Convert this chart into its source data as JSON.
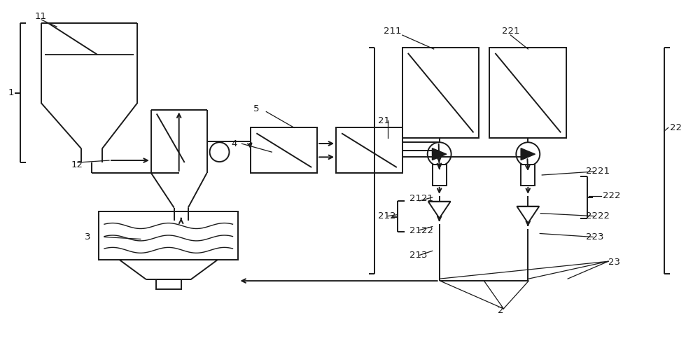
{
  "bg_color": "#ffffff",
  "lc": "#1a1a1a",
  "lw": 1.4,
  "fig_w": 10.0,
  "fig_h": 4.87
}
